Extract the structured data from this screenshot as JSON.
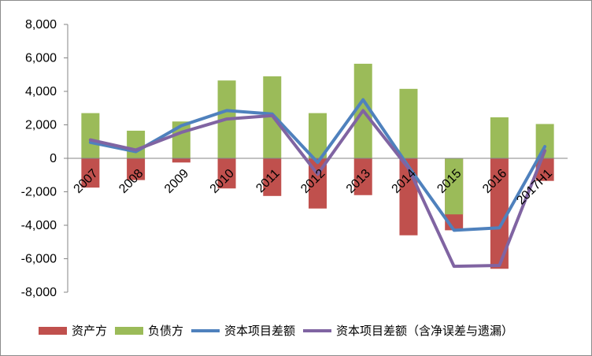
{
  "chart_data": {
    "type": "bar",
    "categories": [
      "2007",
      "2008",
      "2009",
      "2010",
      "2011",
      "2012",
      "2013",
      "2014",
      "2015",
      "2016",
      "2017H1"
    ],
    "ylim": [
      -8000,
      8000
    ],
    "ytick_values": [
      -8000,
      -6000,
      -4000,
      -2000,
      0,
      2000,
      4000,
      6000,
      8000
    ],
    "ytick_labels": [
      "-8,000",
      "-6,000",
      "-4,000",
      "-2,000",
      "0",
      "2,000",
      "4,000",
      "6,000",
      "8,000"
    ],
    "grid": false,
    "legend_position": "bottom",
    "series": [
      {
        "name": "资产方",
        "kind": "bar",
        "color": "#c0504d",
        "values": [
          -1750,
          -1300,
          -250,
          -1800,
          -2250,
          -3000,
          -2200,
          -4600,
          -4300,
          -6600,
          -1350
        ]
      },
      {
        "name": "负债方",
        "kind": "bar",
        "color": "#9bbb59",
        "values": [
          2700,
          1650,
          2200,
          4650,
          4900,
          2700,
          5650,
          4150,
          -3350,
          2450,
          2050
        ]
      },
      {
        "name": "资本项目差额",
        "kind": "line",
        "color": "#4f81bd",
        "values": [
          950,
          400,
          1950,
          2850,
          2650,
          -250,
          3500,
          -500,
          -4300,
          -4150,
          700
        ]
      },
      {
        "name": "资本项目差额（含净误差与遗漏）",
        "kind": "line",
        "color": "#8064a2",
        "values": [
          1100,
          500,
          1550,
          2350,
          2550,
          -950,
          2850,
          -600,
          -6450,
          -6400,
          450
        ]
      }
    ]
  }
}
